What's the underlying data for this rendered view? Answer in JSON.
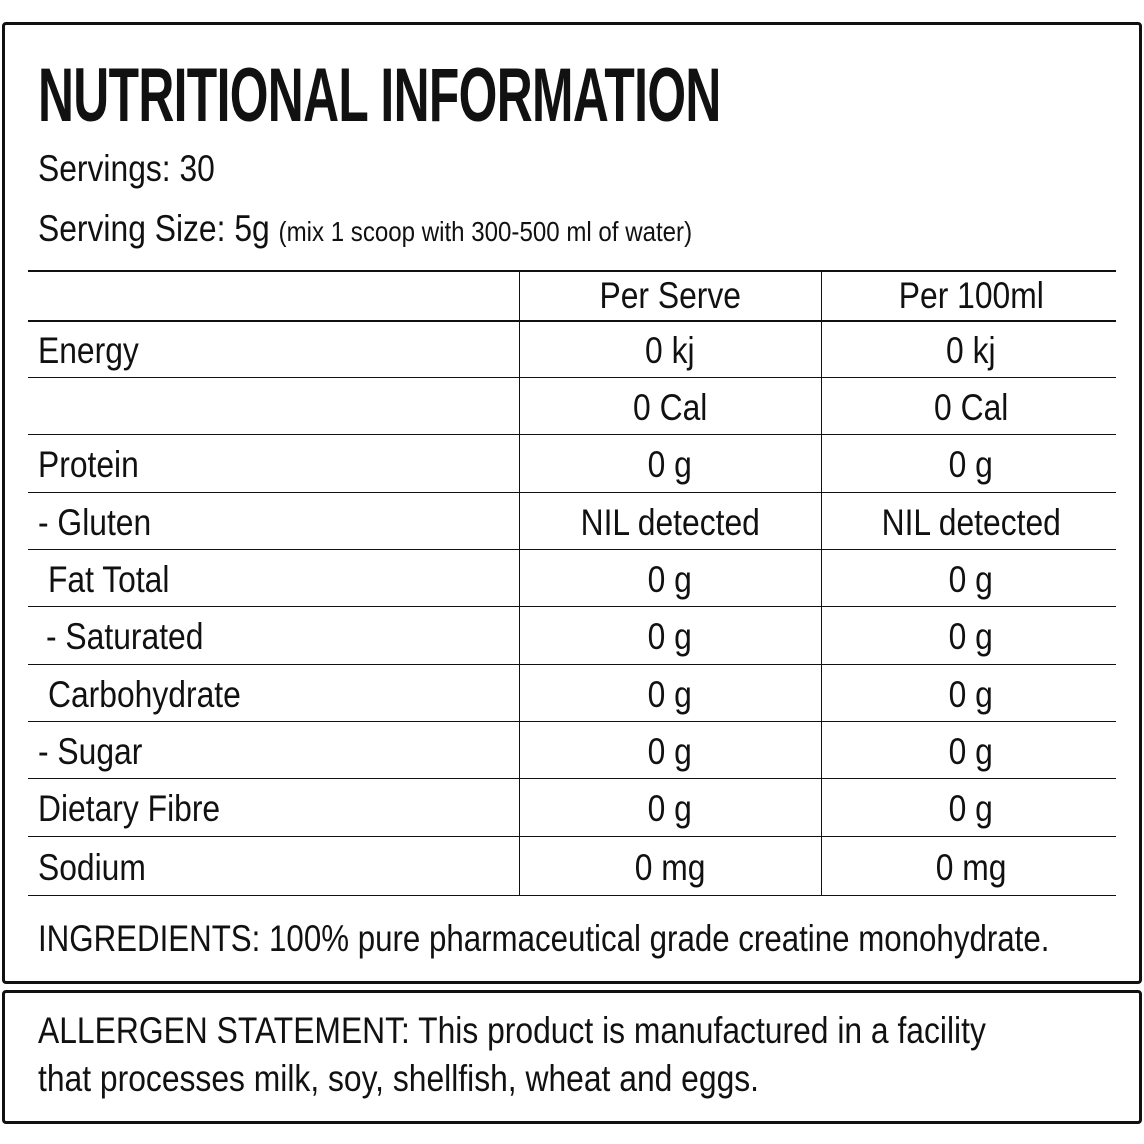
{
  "header": {
    "title": "NUTRITIONAL INFORMATION",
    "servings_label": "Servings:",
    "servings_value": "30",
    "serving_size_label": "Serving Size:",
    "serving_size_value": "5g",
    "serving_size_note": "(mix 1 scoop with 300-500 ml of water)"
  },
  "table": {
    "columns": [
      "Per Serve",
      "Per 100ml"
    ],
    "rows": [
      [
        "Energy",
        "0 kj",
        "0 kj"
      ],
      [
        null,
        "0 Cal",
        "0 Cal"
      ],
      [
        "Protein",
        "0 g",
        "0 g"
      ],
      [
        "- Gluten",
        "NIL detected",
        "NIL detected"
      ],
      [
        "Fat Total",
        "0 g",
        "0 g"
      ],
      [
        "- Saturated",
        "0 g",
        "0 g"
      ],
      [
        "Carbohydrate",
        "0 g",
        "0 g"
      ],
      [
        "- Sugar",
        "0 g",
        "0 g"
      ],
      [
        "Dietary Fibre",
        "0 g",
        "0 g"
      ],
      [
        "Sodium",
        "0 mg",
        "0 mg"
      ]
    ]
  },
  "ingredients": "INGREDIENTS: 100% pure pharmaceutical grade creatine monohydrate.",
  "allergen": {
    "lines": [
      "ALLERGEN STATEMENT:  This product is manufactured in a facility",
      "that processes milk, soy, shellfish, wheat and eggs."
    ]
  }
}
